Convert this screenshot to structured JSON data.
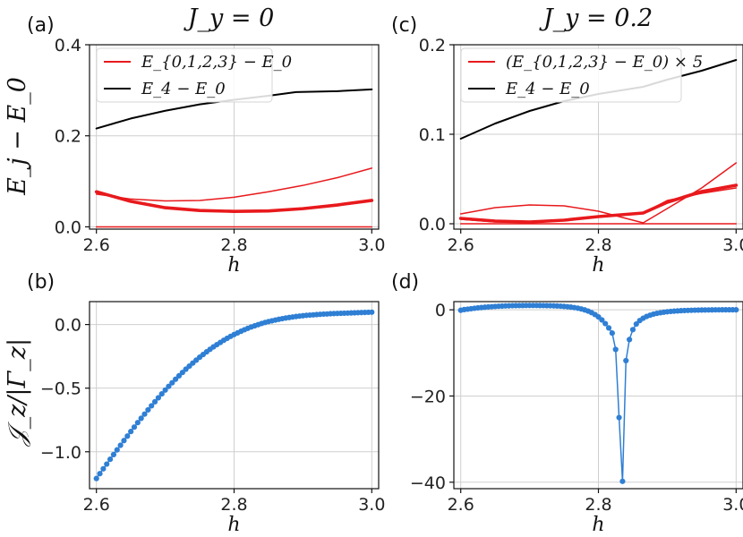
{
  "figure": {
    "ylabel_top": "E_j − E_0",
    "ylabel_bottom": "𝒥_z/|Γ_z|"
  },
  "chart_data": [
    {
      "id": "a",
      "panel_label": "(a)",
      "title": "J_y = 0",
      "type": "line",
      "xlabel": "h",
      "xlim": [
        2.59,
        3.01
      ],
      "ylim": [
        -0.005,
        0.4
      ],
      "xticks": [
        2.6,
        2.8,
        3.0
      ],
      "xtick_labels": [
        "2.6",
        "2.8",
        "3.0"
      ],
      "yticks": [
        0.0,
        0.2,
        0.4
      ],
      "ytick_labels": [
        "0.0",
        "0.2",
        "0.4"
      ],
      "grid": true,
      "legend": [
        {
          "label": "E_{0,1,2,3} − E_0",
          "color": "#e8191c"
        },
        {
          "label": "E_4 − E_0",
          "color": "#000000"
        }
      ],
      "series": [
        {
          "name": "E4-E0",
          "color": "#000000",
          "width": 2,
          "x": [
            2.6,
            2.65,
            2.7,
            2.75,
            2.8,
            2.85,
            2.89,
            2.95,
            3.0
          ],
          "y": [
            0.216,
            0.238,
            0.255,
            0.269,
            0.279,
            0.288,
            0.296,
            0.298,
            0.302
          ]
        },
        {
          "name": "E1-E0 (thin)",
          "color": "#e8191c",
          "width": 1.5,
          "x": [
            2.6,
            2.65,
            2.7,
            2.75,
            2.8,
            2.85,
            2.9,
            2.95,
            3.0
          ],
          "y": [
            0.072,
            0.061,
            0.057,
            0.058,
            0.065,
            0.077,
            0.091,
            0.108,
            0.129
          ]
        },
        {
          "name": "E2,E3-E0 (bold)",
          "color": "#e8191c",
          "width": 3.6,
          "x": [
            2.6,
            2.65,
            2.7,
            2.75,
            2.8,
            2.85,
            2.9,
            2.95,
            3.0
          ],
          "y": [
            0.077,
            0.056,
            0.042,
            0.036,
            0.034,
            0.035,
            0.04,
            0.048,
            0.058
          ]
        },
        {
          "name": "E0-E0",
          "color": "#e8191c",
          "width": 1.5,
          "x": [
            2.6,
            3.0
          ],
          "y": [
            0.0,
            0.0
          ]
        }
      ]
    },
    {
      "id": "c",
      "panel_label": "(c)",
      "title": "J_y = 0.2",
      "type": "line",
      "xlabel": "h",
      "xlim": [
        2.59,
        3.01
      ],
      "ylim": [
        -0.006,
        0.2
      ],
      "xticks": [
        2.6,
        2.8,
        3.0
      ],
      "xtick_labels": [
        "2.6",
        "2.8",
        "3.0"
      ],
      "yticks": [
        0.0,
        0.1,
        0.2
      ],
      "ytick_labels": [
        "0.0",
        "0.1",
        "0.2"
      ],
      "grid": true,
      "legend": [
        {
          "label": "(E_{0,1,2,3} − E_0) × 5",
          "color": "#e8191c"
        },
        {
          "label": "E_4 − E_0",
          "color": "#000000"
        }
      ],
      "series": [
        {
          "name": "E4-E0",
          "color": "#000000",
          "width": 2,
          "x": [
            2.6,
            2.65,
            2.7,
            2.75,
            2.8,
            2.865,
            2.9,
            2.95,
            3.0
          ],
          "y": [
            0.095,
            0.112,
            0.126,
            0.137,
            0.145,
            0.153,
            0.161,
            0.171,
            0.183
          ]
        },
        {
          "name": "thin arch",
          "color": "#e8191c",
          "width": 1.5,
          "x": [
            2.6,
            2.65,
            2.7,
            2.75,
            2.8,
            2.865,
            2.9,
            2.95,
            3.0
          ],
          "y": [
            0.011,
            0.018,
            0.021,
            0.02,
            0.014,
            0.001,
            0.017,
            0.04,
            0.068
          ]
        },
        {
          "name": "thin lower",
          "color": "#e8191c",
          "width": 1.5,
          "x": [
            2.6,
            2.65,
            2.7,
            2.75,
            2.8,
            2.865,
            2.9,
            2.95,
            3.0
          ],
          "y": [
            0.005,
            0.002,
            0.002,
            0.004,
            0.008,
            0.012,
            0.026,
            0.034,
            0.04
          ]
        },
        {
          "name": "bold",
          "color": "#e8191c",
          "width": 3.6,
          "x": [
            2.6,
            2.65,
            2.7,
            2.75,
            2.8,
            2.865,
            2.9,
            2.95,
            3.0
          ],
          "y": [
            0.006,
            0.003,
            0.002,
            0.004,
            0.008,
            0.012,
            0.024,
            0.036,
            0.043
          ]
        },
        {
          "name": "zero",
          "color": "#e8191c",
          "width": 1.5,
          "x": [
            2.6,
            3.0
          ],
          "y": [
            0.0,
            0.0
          ]
        }
      ]
    },
    {
      "id": "b",
      "panel_label": "(b)",
      "title": "",
      "type": "scatter",
      "xlabel": "h",
      "xlim": [
        2.59,
        3.01
      ],
      "ylim": [
        -1.29,
        0.18
      ],
      "xticks": [
        2.6,
        2.8,
        3.0
      ],
      "xtick_labels": [
        "2.6",
        "2.8",
        "3.0"
      ],
      "yticks": [
        -1.0,
        -0.5,
        0.0
      ],
      "ytick_labels": [
        "−1.0",
        "−0.5",
        "0.0"
      ],
      "grid": true,
      "series": [
        {
          "name": "Jz/|Gz|",
          "color": "#2f7fd4",
          "width": 1.5,
          "markers": true,
          "x": [
            2.6,
            2.605,
            2.61,
            2.615,
            2.62,
            2.625,
            2.63,
            2.635,
            2.64,
            2.645,
            2.65,
            2.655,
            2.66,
            2.665,
            2.67,
            2.675,
            2.68,
            2.685,
            2.69,
            2.695,
            2.7,
            2.705,
            2.71,
            2.715,
            2.72,
            2.725,
            2.73,
            2.735,
            2.74,
            2.745,
            2.75,
            2.755,
            2.76,
            2.765,
            2.77,
            2.775,
            2.78,
            2.785,
            2.79,
            2.795,
            2.8,
            2.805,
            2.81,
            2.815,
            2.82,
            2.825,
            2.83,
            2.835,
            2.84,
            2.845,
            2.85,
            2.855,
            2.86,
            2.865,
            2.87,
            2.875,
            2.88,
            2.885,
            2.89,
            2.895,
            2.9,
            2.905,
            2.91,
            2.915,
            2.92,
            2.925,
            2.93,
            2.935,
            2.94,
            2.945,
            2.95,
            2.955,
            2.96,
            2.965,
            2.97,
            2.975,
            2.98,
            2.985,
            2.99,
            2.995,
            3.0
          ],
          "y": [
            -1.21,
            -1.172,
            -1.134,
            -1.097,
            -1.059,
            -1.022,
            -0.985,
            -0.949,
            -0.912,
            -0.877,
            -0.841,
            -0.806,
            -0.771,
            -0.737,
            -0.704,
            -0.671,
            -0.639,
            -0.607,
            -0.576,
            -0.545,
            -0.515,
            -0.486,
            -0.458,
            -0.43,
            -0.403,
            -0.377,
            -0.351,
            -0.327,
            -0.303,
            -0.28,
            -0.257,
            -0.236,
            -0.215,
            -0.195,
            -0.176,
            -0.158,
            -0.141,
            -0.124,
            -0.108,
            -0.093,
            -0.079,
            -0.066,
            -0.053,
            -0.041,
            -0.03,
            -0.019,
            -0.01,
            -0.001,
            0.008,
            0.016,
            0.023,
            0.029,
            0.035,
            0.041,
            0.046,
            0.051,
            0.055,
            0.059,
            0.063,
            0.066,
            0.069,
            0.072,
            0.074,
            0.076,
            0.078,
            0.08,
            0.082,
            0.083,
            0.085,
            0.086,
            0.087,
            0.088,
            0.089,
            0.09,
            0.091,
            0.092,
            0.093,
            0.094,
            0.095,
            0.096,
            0.097
          ]
        }
      ]
    },
    {
      "id": "d",
      "panel_label": "(d)",
      "title": "",
      "type": "scatter",
      "xlabel": "h",
      "xlim": [
        2.59,
        3.01
      ],
      "ylim": [
        -41.5,
        1.9
      ],
      "xticks": [
        2.6,
        2.8,
        3.0
      ],
      "xtick_labels": [
        "2.6",
        "2.8",
        "3.0"
      ],
      "yticks": [
        -40,
        -20,
        0
      ],
      "ytick_labels": [
        "−40",
        "−20",
        "0"
      ],
      "grid": true,
      "series": [
        {
          "name": "Jz/|Gz|",
          "color": "#2f7fd4",
          "width": 1.5,
          "markers": true,
          "x": [
            2.6,
            2.605,
            2.61,
            2.615,
            2.62,
            2.625,
            2.63,
            2.635,
            2.64,
            2.645,
            2.65,
            2.655,
            2.66,
            2.665,
            2.67,
            2.675,
            2.68,
            2.685,
            2.69,
            2.695,
            2.7,
            2.705,
            2.71,
            2.715,
            2.72,
            2.725,
            2.73,
            2.735,
            2.74,
            2.745,
            2.75,
            2.755,
            2.76,
            2.765,
            2.77,
            2.775,
            2.78,
            2.785,
            2.79,
            2.795,
            2.8,
            2.805,
            2.81,
            2.815,
            2.82,
            2.825,
            2.83,
            2.835,
            2.84,
            2.845,
            2.85,
            2.855,
            2.86,
            2.865,
            2.87,
            2.875,
            2.88,
            2.885,
            2.89,
            2.895,
            2.9,
            2.905,
            2.91,
            2.915,
            2.92,
            2.925,
            2.93,
            2.935,
            2.94,
            2.945,
            2.95,
            2.955,
            2.96,
            2.965,
            2.97,
            2.975,
            2.98,
            2.985,
            2.99,
            2.995,
            3.0
          ],
          "y": [
            -0.1,
            0.05,
            0.15,
            0.25,
            0.35,
            0.45,
            0.52,
            0.6,
            0.66,
            0.72,
            0.77,
            0.82,
            0.86,
            0.9,
            0.92,
            0.95,
            0.97,
            0.98,
            0.99,
            1.0,
            1.0,
            1.0,
            1.0,
            0.99,
            0.98,
            0.96,
            0.94,
            0.92,
            0.88,
            0.84,
            0.78,
            0.71,
            0.62,
            0.51,
            0.37,
            0.2,
            -0.02,
            -0.3,
            -0.66,
            -1.1,
            -1.65,
            -2.35,
            -3.2,
            -4.2,
            -5.4,
            -9.2,
            -25.0,
            -39.8,
            -11.8,
            -6.9,
            -4.6,
            -3.3,
            -2.5,
            -1.95,
            -1.55,
            -1.25,
            -1.0,
            -0.82,
            -0.68,
            -0.56,
            -0.46,
            -0.38,
            -0.31,
            -0.26,
            -0.21,
            -0.17,
            -0.14,
            -0.11,
            -0.09,
            -0.07,
            -0.05,
            -0.04,
            -0.03,
            -0.02,
            -0.01,
            -0.01,
            0.0,
            0.0,
            0.0,
            0.0,
            0.0
          ]
        }
      ]
    }
  ]
}
